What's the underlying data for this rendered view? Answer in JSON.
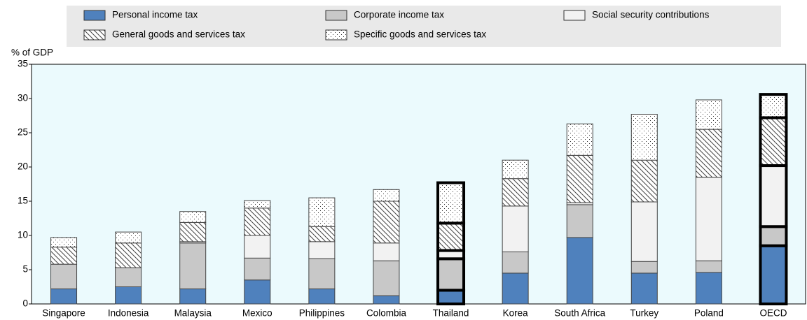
{
  "chart_data": {
    "type": "stacked_bar",
    "y_label": "% of GDP",
    "categories": [
      "Singapore",
      "Indonesia",
      "Malaysia",
      "Mexico",
      "Philippines",
      "Colombia",
      "Thailand",
      "Korea",
      "South Africa",
      "Turkey",
      "Poland",
      "OECD"
    ],
    "series": [
      {
        "name": "Personal income tax",
        "color": "#4f81bd",
        "pattern": "solid",
        "values": [
          2.2,
          2.5,
          2.2,
          3.5,
          2.2,
          1.2,
          2.0,
          4.5,
          9.7,
          4.5,
          4.6,
          8.5
        ]
      },
      {
        "name": "Corporate income tax",
        "color": "#c8c8c8",
        "pattern": "solid",
        "values": [
          3.6,
          2.8,
          6.7,
          3.2,
          4.4,
          5.1,
          4.6,
          3.1,
          4.8,
          1.7,
          1.7,
          2.8
        ]
      },
      {
        "name": "Social security contributions",
        "color": "#f2f2f2",
        "pattern": "solid",
        "values": [
          0,
          0,
          0.2,
          3.3,
          2.5,
          2.6,
          1.2,
          6.7,
          0.3,
          8.7,
          12.2,
          8.9
        ]
      },
      {
        "name": "General goods and services tax",
        "color": "#ffffff",
        "pattern": "hatch",
        "values": [
          2.5,
          3.6,
          2.8,
          4.0,
          2.2,
          6.1,
          4.0,
          4.0,
          6.9,
          6.1,
          7.0,
          7.0
        ]
      },
      {
        "name": "Specific goods and services tax",
        "color": "#ffffff",
        "pattern": "dots",
        "values": [
          1.4,
          1.6,
          1.6,
          1.1,
          4.2,
          1.7,
          5.9,
          2.7,
          4.6,
          6.7,
          4.3,
          3.4
        ]
      }
    ],
    "highlight": [
      6,
      11
    ],
    "ylim": [
      0,
      35
    ],
    "yticks": [
      0,
      5,
      10,
      15,
      20,
      25,
      30,
      35
    ],
    "grid": false
  }
}
